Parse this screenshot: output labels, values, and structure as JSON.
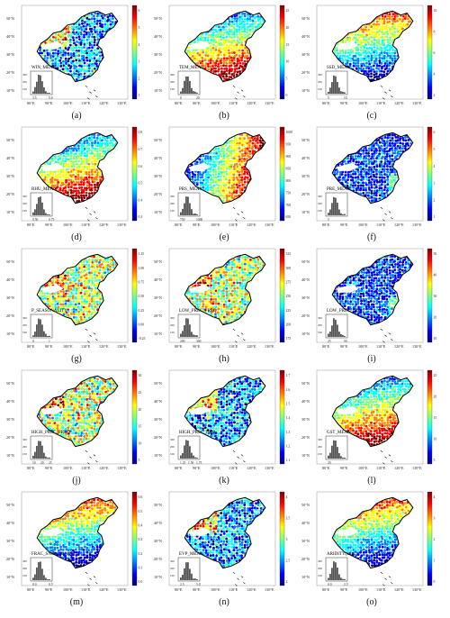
{
  "panels": [
    {
      "id": "a",
      "caption": "(a)",
      "label": "WIN_MEAN",
      "hist_ticks": [
        "3.5",
        "5.6"
      ],
      "hist_y": [
        "300",
        "200",
        "100"
      ],
      "cbar_ticks": [
        "6",
        "5",
        "4",
        "3",
        "2",
        "1"
      ],
      "palette": "mixed-low"
    },
    {
      "id": "b",
      "caption": "(b)",
      "label": "TEM_MEAN",
      "hist_ticks": [
        "0",
        "20"
      ],
      "hist_y": [
        "300",
        "200",
        "100"
      ],
      "cbar_ticks": [
        "25",
        "20",
        "15",
        "10",
        "5",
        "0"
      ],
      "palette": "south-warm"
    },
    {
      "id": "c",
      "caption": "(c)",
      "label": "SSD_MEAN",
      "hist_ticks": [
        "5",
        "10"
      ],
      "hist_y": [
        "300",
        "200",
        "100"
      ],
      "cbar_ticks": [
        "10",
        "8",
        "6",
        "4",
        "2"
      ],
      "palette": "north-warm"
    },
    {
      "id": "d",
      "caption": "(d)",
      "label": "RHU_MEAN",
      "hist_ticks": [
        "0.50",
        "0.75"
      ],
      "hist_y": [
        "300",
        "200",
        "100"
      ],
      "cbar_ticks": [
        "0.8",
        "0.7",
        "0.6",
        "0.5",
        "0.4",
        "0.3"
      ],
      "palette": "south-warm"
    },
    {
      "id": "e",
      "caption": "(e)",
      "label": "PRS_MEAN",
      "hist_ticks": [
        "750",
        "1000"
      ],
      "hist_y": [
        "300",
        "200",
        "100"
      ],
      "cbar_ticks": [
        "1000",
        "950",
        "900",
        "850",
        "800",
        "750",
        "700",
        "650"
      ],
      "palette": "east-warm"
    },
    {
      "id": "f",
      "caption": "(f)",
      "label": "PRE_MEAN",
      "hist_ticks": [
        "5"
      ],
      "hist_y": [
        "300",
        "200",
        "100"
      ],
      "cbar_ticks": [
        "6",
        "5",
        "4",
        "3",
        "2",
        "1"
      ],
      "palette": "mostly-low"
    },
    {
      "id": "g",
      "caption": "(g)",
      "label": "P_SEASONALITY",
      "hist_ticks": [
        "0",
        "1"
      ],
      "hist_y": [
        "300",
        "200",
        "100"
      ],
      "cbar_ticks": [
        "1.25",
        "1.00",
        "0.75",
        "0.50",
        "0.25",
        "0.00",
        "-0.25"
      ],
      "palette": "mixed-high"
    },
    {
      "id": "h",
      "caption": "(h)",
      "label": "LOW_PREC_FREQ",
      "hist_ticks": [
        "200",
        "300"
      ],
      "hist_y": [
        "300",
        "200",
        "100"
      ],
      "cbar_ticks": [
        "325",
        "300",
        "275",
        "250",
        "225",
        "200",
        "175"
      ],
      "palette": "mixed-high"
    },
    {
      "id": "i",
      "caption": "(i)",
      "label": "LOW_PREC_DUR",
      "hist_ticks": [
        "25",
        "50"
      ],
      "hist_y": [
        "300",
        "200",
        "100"
      ],
      "cbar_ticks": [
        "50",
        "40",
        "30",
        "20",
        "10"
      ],
      "palette": "mostly-low"
    },
    {
      "id": "j",
      "caption": "(j)",
      "label": "HIGH_PREC_FREQ",
      "hist_ticks": [
        "10",
        "20",
        "25"
      ],
      "hist_y": [
        "300",
        "200",
        "100"
      ],
      "cbar_ticks": [
        "30",
        "25",
        "20",
        "15",
        "10",
        "5"
      ],
      "palette": "mixed-high"
    },
    {
      "id": "k",
      "caption": "(k)",
      "label": "HIGH_PREC_DUR",
      "hist_ticks": [
        "1.25",
        "1.50",
        "1.75"
      ],
      "hist_y": [
        "300",
        "200",
        "100"
      ],
      "cbar_ticks": [
        "1.7",
        "1.6",
        "1.5",
        "1.4",
        "1.3",
        "1.2",
        "1.1"
      ],
      "palette": "mixed-low"
    },
    {
      "id": "l",
      "caption": "(l)",
      "label": "GST_MEAN",
      "hist_ticks": [
        "20"
      ],
      "hist_y": [
        "300",
        "200",
        "100"
      ],
      "cbar_ticks": [
        "25",
        "20",
        "15",
        "10",
        "5"
      ],
      "palette": "south-warm"
    },
    {
      "id": "m",
      "caption": "(m)",
      "label": "FRAC_SNOW_DAILY",
      "hist_ticks": [
        "0.0",
        "0.5"
      ],
      "hist_y": [
        "300",
        "200",
        "100"
      ],
      "cbar_ticks": [
        "0.6",
        "0.5",
        "0.4",
        "0.3",
        "0.2",
        "0.1",
        "0.0"
      ],
      "palette": "north-warm"
    },
    {
      "id": "n",
      "caption": "(n)",
      "label": "EVP_MEAN",
      "hist_ticks": [
        "2.5",
        "5.0"
      ],
      "hist_y": [
        "300",
        "200",
        "100"
      ],
      "cbar_ticks": [
        "4",
        "3.5",
        "3",
        "2.5",
        "2"
      ],
      "palette": "mixed-low"
    },
    {
      "id": "o",
      "caption": "(o)",
      "label": "ARIDITY(LOG)",
      "hist_ticks": [
        "0.0",
        "2.5"
      ],
      "hist_y": [
        "300",
        "200",
        "100"
      ],
      "cbar_ticks": [
        "4",
        "3",
        "2",
        "1",
        "0"
      ],
      "palette": "north-warm"
    }
  ],
  "lat_labels": [
    "50°N",
    "40°N",
    "30°N",
    "20°N",
    "10°N"
  ],
  "lon_labels": [
    "80°E",
    "90°E",
    "100°E",
    "110°E",
    "120°E",
    "130°E"
  ],
  "colormap": [
    "#00007f",
    "#0000ff",
    "#007fff",
    "#00ffff",
    "#7fff7f",
    "#ffff00",
    "#ff7f00",
    "#ff0000",
    "#7f0000"
  ]
}
